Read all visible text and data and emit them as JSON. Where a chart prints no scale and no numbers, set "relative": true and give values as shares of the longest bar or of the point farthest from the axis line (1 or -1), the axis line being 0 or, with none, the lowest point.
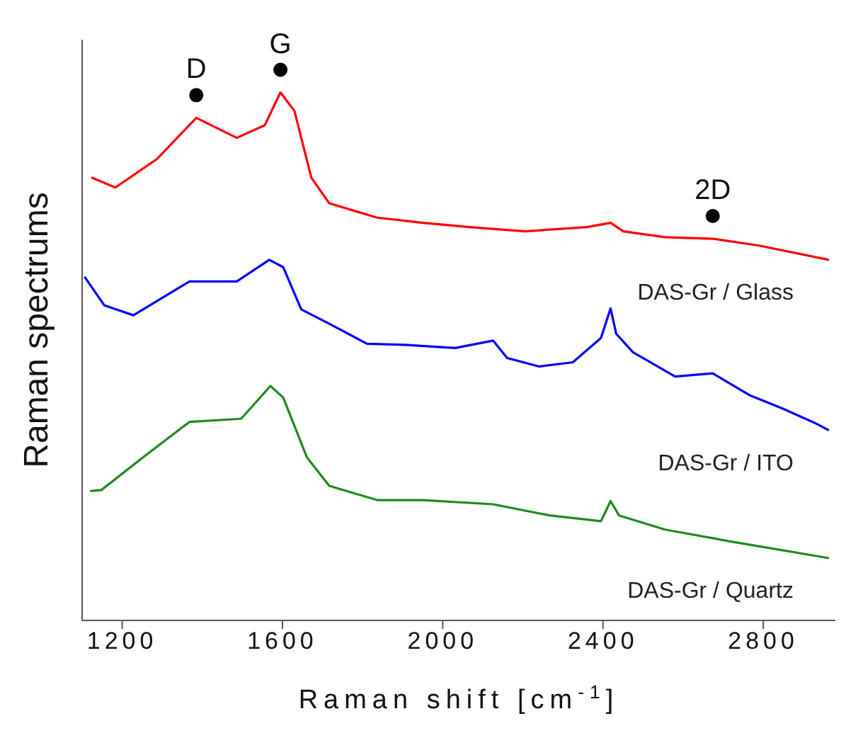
{
  "chart_data": {
    "type": "line",
    "relative": true,
    "xlabel": "Raman shift [cm$^{-1}$]",
    "ylabel": "Raman spectrums",
    "xlim": [
      1100,
      2980
    ],
    "xticks": [
      1200,
      1600,
      2000,
      2400,
      2800
    ],
    "grid": false,
    "legend": false,
    "marker": "none",
    "line_style": "solid",
    "annotations": [
      {
        "text": "D",
        "x": 1385,
        "y": 0.952
      },
      {
        "text": "G",
        "x": 1595,
        "y": 1
      },
      {
        "text": "2D",
        "x": 2674,
        "y": 0.723
      }
    ],
    "series": [
      {
        "name": "DAS-Gr / Glass",
        "color": "#ff0000",
        "x": [
          1123,
          1183,
          1287,
          1385,
          1486,
          1556,
          1595,
          1630,
          1672,
          1717,
          1836,
          1951,
          2066,
          2206,
          2360,
          2419,
          2451,
          2555,
          2674,
          2790,
          2964
        ],
        "values": [
          0.839,
          0.82,
          0.874,
          0.952,
          0.914,
          0.938,
          1,
          0.965,
          0.839,
          0.79,
          0.763,
          0.753,
          0.745,
          0.737,
          0.745,
          0.753,
          0.737,
          0.726,
          0.723,
          0.71,
          0.683
        ]
      },
      {
        "name": "DAS-Gr / ITO",
        "color": "#0000ff",
        "x": [
          1106,
          1155,
          1228,
          1368,
          1486,
          1567,
          1602,
          1647,
          1717,
          1811,
          1906,
          2031,
          2126,
          2161,
          2241,
          2325,
          2395,
          2419,
          2433,
          2475,
          2580,
          2674,
          2765,
          2849,
          2929,
          2964
        ],
        "values": [
          0.651,
          0.597,
          0.578,
          0.642,
          0.642,
          0.683,
          0.669,
          0.589,
          0.562,
          0.524,
          0.522,
          0.516,
          0.53,
          0.497,
          0.481,
          0.489,
          0.535,
          0.591,
          0.543,
          0.508,
          0.462,
          0.468,
          0.427,
          0.401,
          0.374,
          0.36
        ]
      },
      {
        "name": "DAS-Gr / Quartz",
        "color": "#1e8a1e",
        "x": [
          1120,
          1148,
          1252,
          1368,
          1497,
          1570,
          1602,
          1661,
          1717,
          1836,
          1951,
          2126,
          2266,
          2395,
          2419,
          2440,
          2555,
          2730,
          2964
        ],
        "values": [
          0.245,
          0.247,
          0.309,
          0.376,
          0.382,
          0.444,
          0.422,
          0.309,
          0.255,
          0.228,
          0.228,
          0.22,
          0.199,
          0.188,
          0.226,
          0.199,
          0.172,
          0.148,
          0.118
        ]
      }
    ]
  }
}
